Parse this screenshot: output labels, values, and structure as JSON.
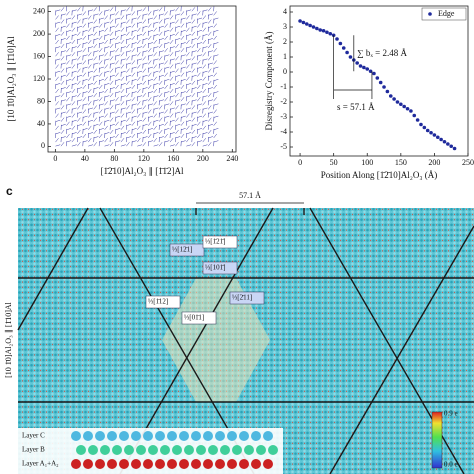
{
  "chart_data": [
    {
      "type": "quiver",
      "xlabel": "[1̄2̄10]Al₂O₃ ∥ [1̄1̄2]Al",
      "ylabel": "[10 1̄0]Al₂O₃ ∥ [1̄10]Al",
      "xlim": [
        -10,
        245
      ],
      "xticks": [
        0,
        40,
        80,
        120,
        160,
        200,
        240
      ],
      "ylim": [
        -10,
        250
      ],
      "yticks": [
        0,
        40,
        80,
        120,
        160,
        200,
        240
      ],
      "color": "#3a3aa8"
    },
    {
      "type": "scatter",
      "xlabel": "Position Along [1̄2̄10]Al₂O₃ (Å)",
      "ylabel": "Disregistry Component (Å)",
      "xlim": [
        -15,
        250
      ],
      "xticks": [
        0,
        50,
        100,
        150,
        200,
        250
      ],
      "ylim": [
        -5.6,
        4.4
      ],
      "yticks": [
        -5,
        -4,
        -3,
        -2,
        -1,
        0,
        1,
        2,
        3,
        4
      ],
      "legend": "upper right",
      "annotations": [
        "∑ bₓ = 2.48 Å",
        "s = 57.1 Å"
      ],
      "series": [
        {
          "name": "Edge",
          "color": "#1f2a9c",
          "x": [
            0,
            5,
            10,
            15,
            20,
            25,
            30,
            35,
            40,
            45,
            50,
            55,
            60,
            65,
            70,
            75,
            80,
            85,
            90,
            95,
            100,
            105,
            110,
            115,
            120,
            125,
            130,
            135,
            140,
            145,
            150,
            155,
            160,
            165,
            170,
            175,
            180,
            185,
            190,
            195,
            200,
            205,
            210,
            215,
            220,
            225,
            230
          ],
          "values": [
            3.4,
            3.3,
            3.2,
            3.1,
            3.0,
            2.9,
            2.8,
            2.75,
            2.65,
            2.55,
            2.45,
            2.2,
            1.9,
            1.6,
            1.3,
            1.0,
            0.8,
            0.6,
            0.4,
            0.3,
            0.2,
            0.05,
            -0.1,
            -0.4,
            -0.7,
            -1.0,
            -1.3,
            -1.6,
            -1.8,
            -2.0,
            -2.15,
            -2.3,
            -2.45,
            -2.6,
            -2.9,
            -3.2,
            -3.5,
            -3.7,
            -3.9,
            -4.05,
            -4.2,
            -4.35,
            -4.5,
            -4.65,
            -4.8,
            -4.95,
            -5.1
          ]
        }
      ]
    }
  ],
  "panel_c": {
    "label": "c",
    "spacing": "57.1 Å",
    "ylabel": "[10 1̄0]Al₂O₃ ∥ [1̄10]Al",
    "vectors": [
      "⅓[12̄1]",
      "⅓[1̄21̄]",
      "⅓[101̄]",
      "⅓[1̄12]",
      "⅓[2̄11]",
      "⅓[01̄1]"
    ],
    "layers": [
      "Layer C",
      "Layer B",
      "Layer A₁+A₂"
    ],
    "colorbar": [
      "0.9 e",
      "0.0 e"
    ]
  }
}
